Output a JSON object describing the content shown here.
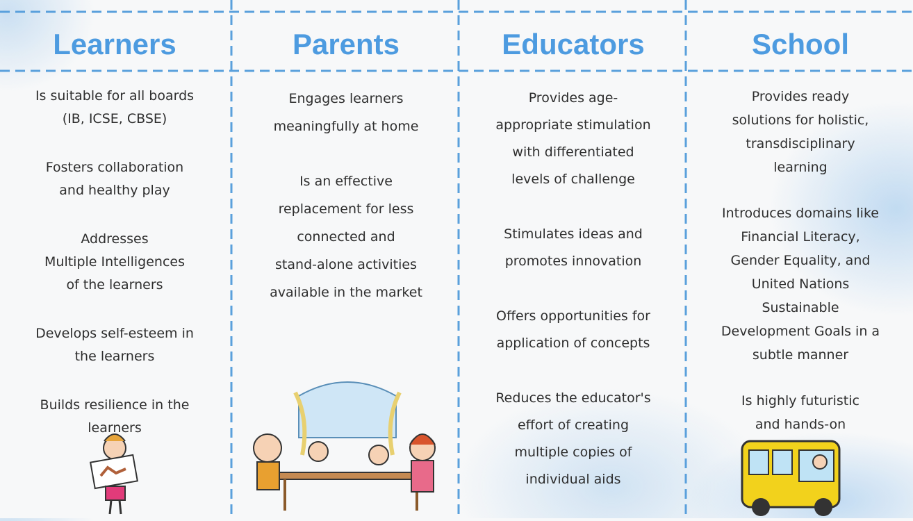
{
  "columns": [
    {
      "heading": "Learners",
      "items": [
        [
          "Is suitable for all boards",
          "(IB, ICSE, CBSE)"
        ],
        [
          "Fosters collaboration",
          "and healthy play"
        ],
        [
          "Addresses",
          "Multiple Intelligences",
          "of the learners"
        ],
        [
          "Develops self-esteem in",
          "the learners"
        ],
        [
          "Builds resilience in the",
          "learners"
        ]
      ]
    },
    {
      "heading": "Parents",
      "items": [
        [
          "Engages learners",
          "meaningfully at home"
        ],
        [
          "Is an effective",
          "replacement for less",
          "connected and",
          "stand-alone activities",
          "available in the market"
        ]
      ]
    },
    {
      "heading": "Educators",
      "items": [
        [
          "Provides age-",
          "appropriate stimulation",
          "with differentiated",
          "levels of challenge"
        ],
        [
          "Stimulates ideas and",
          "promotes innovation"
        ],
        [
          "Offers opportunities for",
          "application of concepts"
        ],
        [
          "Reduces the educator's",
          "effort of creating",
          "multiple copies of",
          "individual aids"
        ]
      ]
    },
    {
      "heading": "School",
      "items": [
        [
          "Provides ready",
          "solutions for holistic,",
          "transdisciplinary",
          "learning"
        ],
        [
          "Introduces domains like",
          "Financial Literacy,",
          "Gender Equality, and",
          "United Nations",
          "Sustainable",
          "Development Goals in a",
          "subtle manner"
        ],
        [
          "Is highly futuristic",
          "and hands-on"
        ]
      ]
    }
  ]
}
